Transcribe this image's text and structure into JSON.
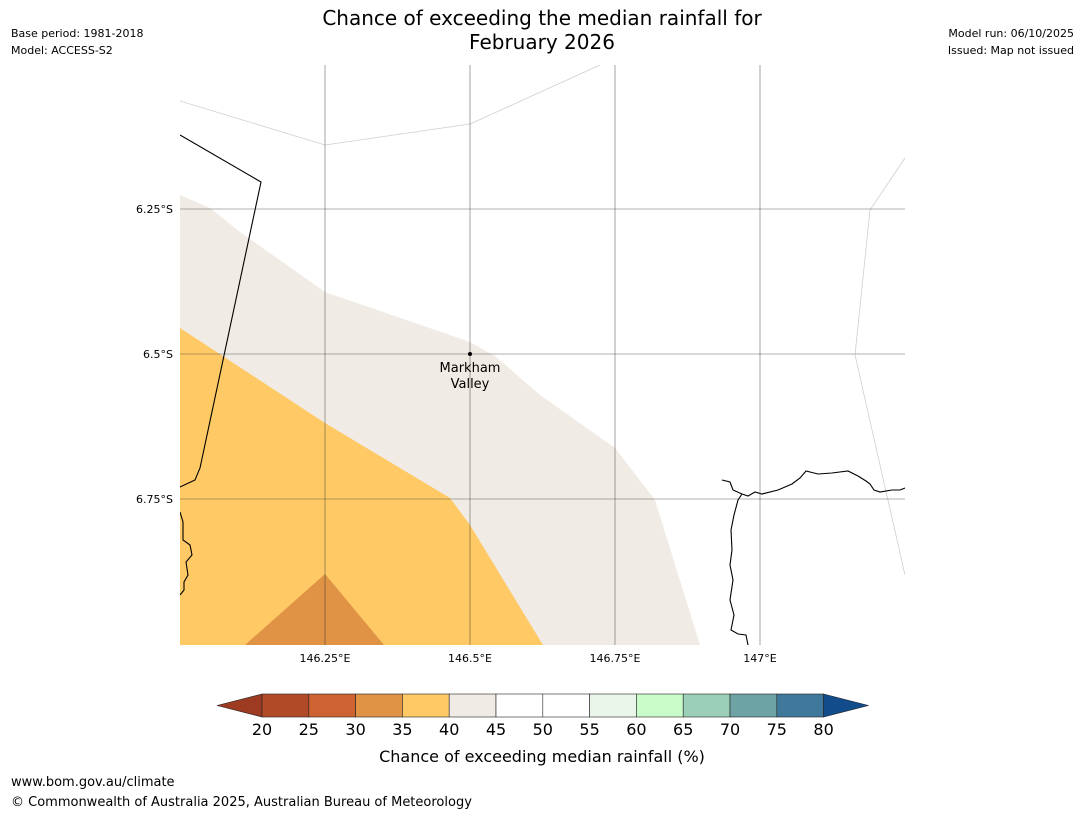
{
  "title_line1": "Chance of exceeding the median rainfall for",
  "title_line2": "February 2026",
  "meta_left": {
    "base_period": "Base period: 1981-2018",
    "model": "Model: ACCESS-S2"
  },
  "meta_right": {
    "model_run": "Model run: 06/10/2025",
    "issued": "Issued: Map not issued"
  },
  "map": {
    "lat_ticks": [
      "6.25°S",
      "6.5°S",
      "6.75°S"
    ],
    "lon_ticks": [
      "146.25°E",
      "146.5°E",
      "146.75°E",
      "147°E"
    ],
    "place_line1": "Markham",
    "place_line2": "Valley"
  },
  "colorbar": {
    "ticks": [
      "20",
      "25",
      "30",
      "35",
      "40",
      "45",
      "50",
      "55",
      "60",
      "65",
      "70",
      "75",
      "80"
    ],
    "label": "Chance of exceeding median rainfall (%)",
    "colors": [
      "#9c3a22",
      "#b14a26",
      "#cc6331",
      "#e09245",
      "#ffca66",
      "#f0ebe4",
      "#ffffff",
      "#ffffff",
      "#e9f6e9",
      "#c9fcc9",
      "#9ccfb7",
      "#6da3a5",
      "#40789c",
      "#124c8a"
    ]
  },
  "footer": {
    "url": "www.bom.gov.au/climate",
    "copyright": "© Commonwealth of Australia 2025, Australian Bureau of Meteorology"
  }
}
